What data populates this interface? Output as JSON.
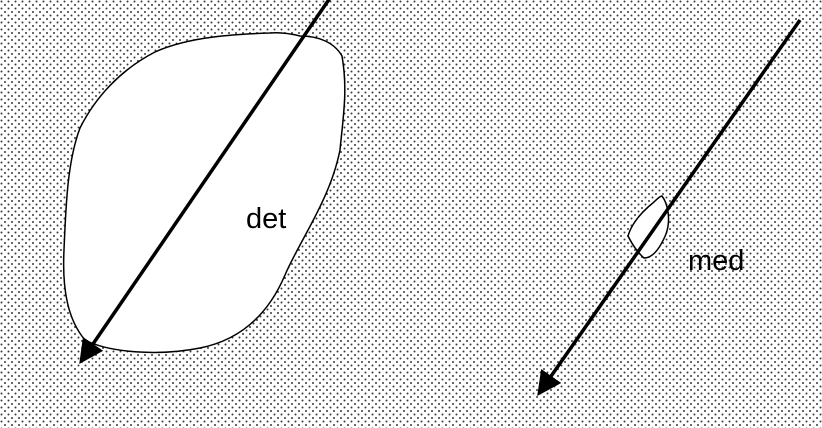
{
  "labels": {
    "left": "det",
    "right": "med"
  },
  "colors": {
    "background": "#ffffff",
    "dots": "#3a3a3a",
    "stroke": "#000000",
    "region_fill": "#ffffff"
  },
  "pattern": "dotted"
}
